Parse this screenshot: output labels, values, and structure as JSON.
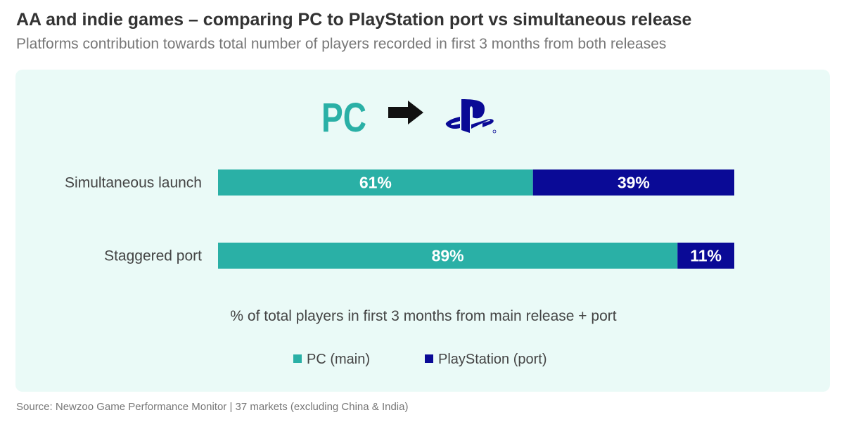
{
  "title": "AA and indie games – comparing PC to PlayStation port vs simultaneous release",
  "subtitle": "Platforms contribution towards total number of players recorded in first 3 months from both releases",
  "source": "Source: Newzoo Game Performance Monitor | 37 markets (excluding China & India)",
  "header_icons": {
    "pc_text": "PC",
    "arrow": "arrow-right-icon",
    "playstation": "playstation-logo-icon"
  },
  "colors": {
    "pc": "#2ab0a6",
    "playstation": "#0a0a96",
    "panel": "#eafaf7",
    "text": "#333333"
  },
  "chart_data": {
    "type": "bar",
    "orientation": "horizontal",
    "stacked": true,
    "categories": [
      "Simultaneous launch",
      "Staggered port"
    ],
    "series": [
      {
        "name": "PC (main)",
        "values": [
          61,
          89
        ],
        "labels": [
          "61%",
          "89%"
        ]
      },
      {
        "name": "PlayStation (port)",
        "values": [
          39,
          11
        ],
        "labels": [
          "39%",
          "11%"
        ]
      }
    ],
    "xlabel": "% of total players in first 3 months from main release + port",
    "xlim": [
      0,
      100
    ],
    "legend_position": "bottom-center"
  }
}
